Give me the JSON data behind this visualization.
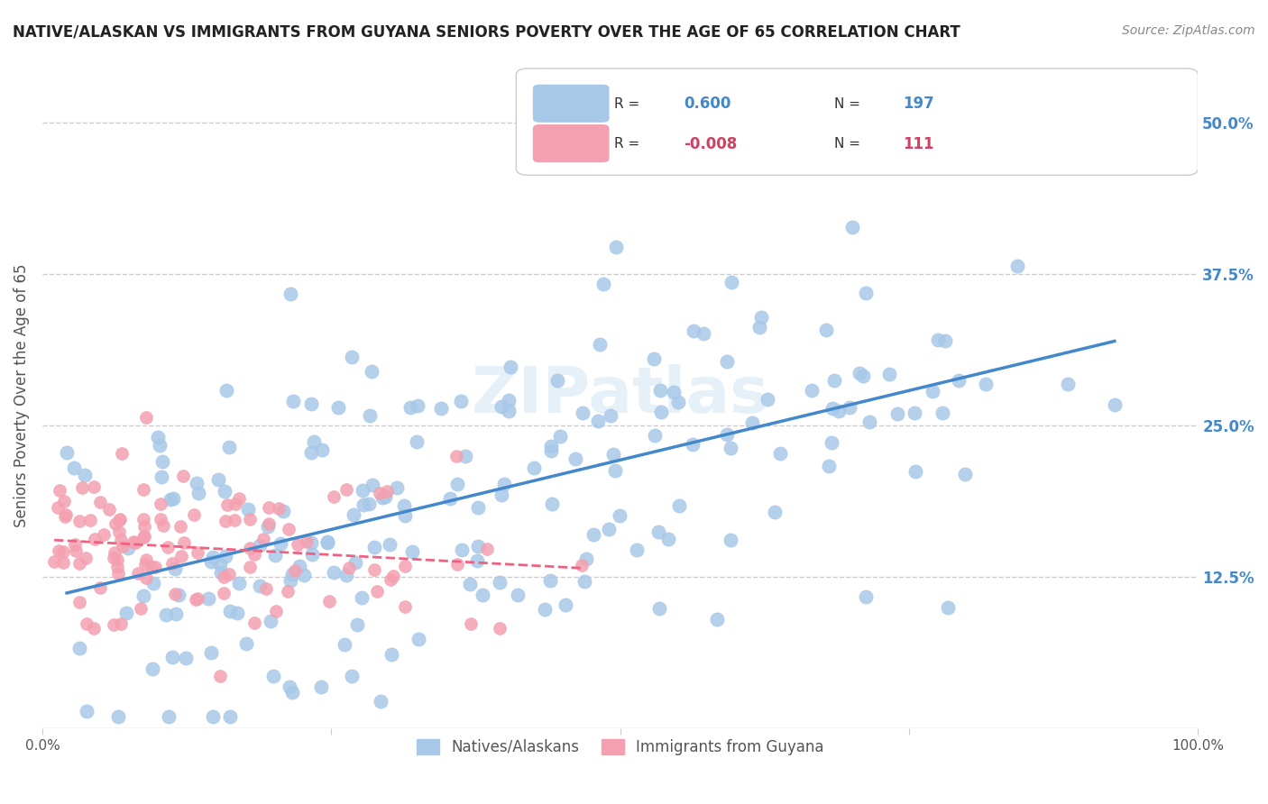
{
  "title": "NATIVE/ALASKAN VS IMMIGRANTS FROM GUYANA SENIORS POVERTY OVER THE AGE OF 65 CORRELATION CHART",
  "source": "Source: ZipAtlas.com",
  "ylabel": "Seniors Poverty Over the Age of 65",
  "xlim": [
    0,
    1.0
  ],
  "ylim": [
    0,
    0.55
  ],
  "yticks": [
    0.125,
    0.25,
    0.375,
    0.5
  ],
  "ytick_labels": [
    "12.5%",
    "25.0%",
    "37.5%",
    "50.0%"
  ],
  "blue_R": 0.6,
  "blue_N": 197,
  "pink_R": -0.008,
  "pink_N": 111,
  "blue_color": "#a8c8e8",
  "pink_color": "#f4a0b0",
  "blue_line_color": "#4488cc",
  "pink_line_color": "#f06080",
  "grid_color": "#cccccc",
  "background_color": "#ffffff",
  "watermark_text": "ZIPatlas",
  "legend_label_blue": "Natives/Alaskans",
  "legend_label_pink": "Immigrants from Guyana"
}
